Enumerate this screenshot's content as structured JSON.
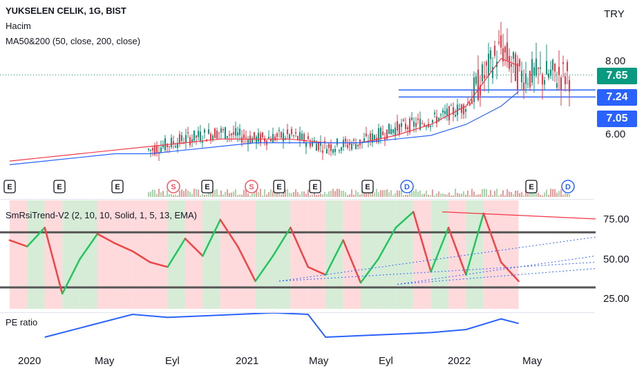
{
  "legend": {
    "symbol": "YUKSELEN CELIK, 1G, BIST",
    "volume": "Hacim",
    "ma": "MA50&200 (50, close, 200, close)",
    "rsi": "SmRsiTrend-V2 (2, 10, 10, Solid, 1, 5, 13, EMA)",
    "pe": "PE ratio"
  },
  "currency": "TRY",
  "price_axis": {
    "ticks": [
      "8.00",
      "6.00"
    ]
  },
  "price_tags": [
    {
      "label": "7.65",
      "color": "#089981"
    },
    {
      "label": "7.24",
      "color": "#2962ff"
    },
    {
      "label": "7.05",
      "color": "#2962ff"
    }
  ],
  "rsi_axis": {
    "ticks": [
      "75.00",
      "50.00",
      "25.00"
    ]
  },
  "x_axis": {
    "ticks": [
      "2020",
      "May",
      "Eyl",
      "2021",
      "May",
      "Eyl",
      "2022",
      "May"
    ]
  },
  "events": [
    "E",
    "E",
    "E",
    "S",
    "E",
    "S",
    "E",
    "E",
    "E",
    "D",
    "E",
    "D"
  ],
  "colors": {
    "up": "#089981",
    "down": "#f23645",
    "ma50": "#f23645",
    "ma200": "#2962ff",
    "hline": "#2962ff",
    "rsi_up": "#22c55e",
    "rsi_down": "#ef4444",
    "pe": "#2962ff",
    "bg_green": "#c8e6c9",
    "bg_red": "#ffcdd2"
  },
  "chart_data": [
    {
      "type": "candlestick",
      "title": "YUKSELEN CELIK, 1G, BIST",
      "ylabel": "TRY",
      "ylim": [
        5.0,
        9.2
      ],
      "horizontal_lines": [
        7.24,
        7.05
      ],
      "last_price": 7.65,
      "x": [
        "2020-01",
        "2020-03",
        "2020-05",
        "2020-07",
        "2020-09",
        "2020-11",
        "2021-01",
        "2021-03",
        "2021-05",
        "2021-07",
        "2021-09",
        "2021-11",
        "2022-01",
        "2022-03",
        "2022-05",
        "2022-06"
      ],
      "close": [
        5.3,
        5.4,
        5.5,
        5.8,
        5.6,
        5.9,
        6.1,
        5.9,
        6.0,
        5.7,
        5.8,
        6.2,
        6.4,
        6.8,
        8.4,
        7.65
      ],
      "ma50": [
        5.3,
        5.4,
        5.5,
        5.6,
        5.7,
        5.8,
        5.9,
        5.9,
        5.9,
        5.8,
        5.8,
        6.0,
        6.3,
        6.8,
        8.1,
        7.9
      ],
      "ma200": [
        5.2,
        5.3,
        5.4,
        5.5,
        5.5,
        5.6,
        5.7,
        5.8,
        5.8,
        5.8,
        5.8,
        5.9,
        6.0,
        6.3,
        6.8,
        7.2
      ]
    },
    {
      "type": "line",
      "title": "SmRsiTrend-V2 (2, 10, 10, Solid, 1, 5, 13, EMA)",
      "ylim": [
        20,
        85
      ],
      "reference_lines": [
        67,
        32
      ],
      "x": [
        "2020-01",
        "2020-02",
        "2020-03",
        "2020-04",
        "2020-05",
        "2020-06",
        "2020-07",
        "2020-08",
        "2020-09",
        "2020-10",
        "2020-11",
        "2020-12",
        "2021-01",
        "2021-02",
        "2021-03",
        "2021-04",
        "2021-05",
        "2021-06",
        "2021-07",
        "2021-08",
        "2021-09",
        "2021-10",
        "2021-11",
        "2021-12",
        "2022-01",
        "2022-02",
        "2022-03",
        "2022-04",
        "2022-05",
        "2022-06"
      ],
      "values": [
        62,
        58,
        70,
        28,
        50,
        66,
        60,
        55,
        48,
        45,
        63,
        52,
        75,
        58,
        36,
        52,
        70,
        45,
        40,
        62,
        35,
        50,
        70,
        80,
        42,
        70,
        40,
        79,
        48,
        36
      ]
    },
    {
      "type": "line",
      "title": "PE ratio",
      "x": [
        "2020-03",
        "2020-05",
        "2020-08",
        "2020-10",
        "2020-12",
        "2021-02",
        "2021-04",
        "2021-06",
        "2021-07",
        "2021-09",
        "2021-11",
        "2022-01",
        "2022-03",
        "2022-05",
        "2022-06"
      ],
      "values": [
        8.0,
        8.6,
        9.5,
        9.3,
        9.4,
        9.5,
        9.6,
        9.5,
        8.0,
        8.1,
        8.2,
        8.3,
        8.5,
        9.2,
        8.9
      ]
    }
  ]
}
